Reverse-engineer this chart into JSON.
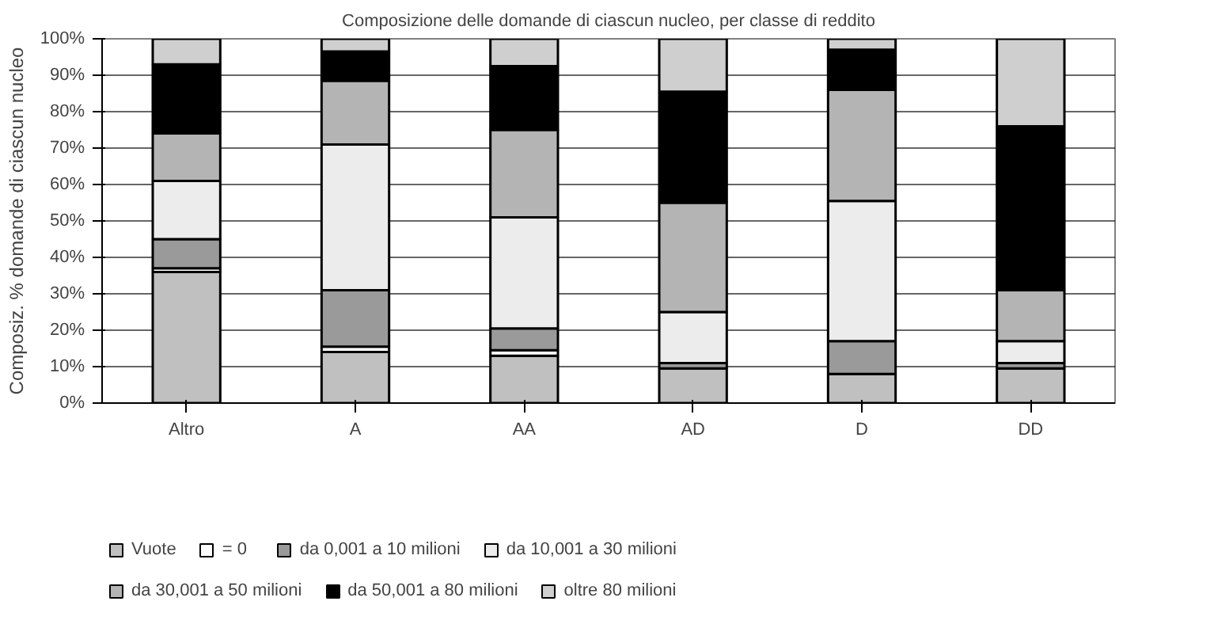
{
  "chart_data": {
    "type": "bar",
    "stacked": true,
    "title": "Composizione delle domande di ciascun nucleo, per classe di reddito",
    "ylabel": "Composiz. % domande di ciascun nucleo",
    "categories": [
      "Altro",
      "A",
      "AA",
      "AD",
      "D",
      "DD"
    ],
    "series": [
      {
        "name": "Vuote",
        "color": "#c0c0c0",
        "values": [
          36,
          14,
          13,
          9.5,
          8,
          9.5
        ]
      },
      {
        "name": "= 0",
        "color": "#ffffff",
        "values": [
          1,
          1.5,
          1.5,
          null,
          null,
          null
        ]
      },
      {
        "name": "da 0,001 a 10 milioni",
        "color": "#9a9a9a",
        "values": [
          8,
          15.5,
          6,
          1.5,
          9,
          1.5
        ]
      },
      {
        "name": "da 10,001 a 30 milioni",
        "color": "#ececec",
        "values": [
          16,
          40,
          30.5,
          14,
          38.5,
          6
        ]
      },
      {
        "name": "da 30,001 a 50 milioni",
        "color": "#b4b4b4",
        "values": [
          13,
          17.5,
          24,
          30,
          30.5,
          14
        ]
      },
      {
        "name": "da 50,001 a 80 milioni",
        "color": "#000000",
        "values": [
          19,
          8,
          17.5,
          30.5,
          11,
          45
        ]
      },
      {
        "name": "oltre 80 milioni",
        "color": "#cfcfcf",
        "values": [
          7,
          3.5,
          7.5,
          14.5,
          3,
          24
        ]
      }
    ],
    "ylim": [
      0,
      100
    ],
    "yticks": [
      {
        "value": 0,
        "label": "0%"
      },
      {
        "value": 10,
        "label": "10%"
      },
      {
        "value": 20,
        "label": "20%"
      },
      {
        "value": 30,
        "label": "30%"
      },
      {
        "value": 40,
        "label": "40%"
      },
      {
        "value": 50,
        "label": "50%"
      },
      {
        "value": 60,
        "label": "60%"
      },
      {
        "value": 70,
        "label": "70%"
      },
      {
        "value": 80,
        "label": "80%"
      },
      {
        "value": 90,
        "label": "90%"
      },
      {
        "value": 100,
        "label": "100%"
      }
    ],
    "grid": "y",
    "legend": "bottom"
  }
}
